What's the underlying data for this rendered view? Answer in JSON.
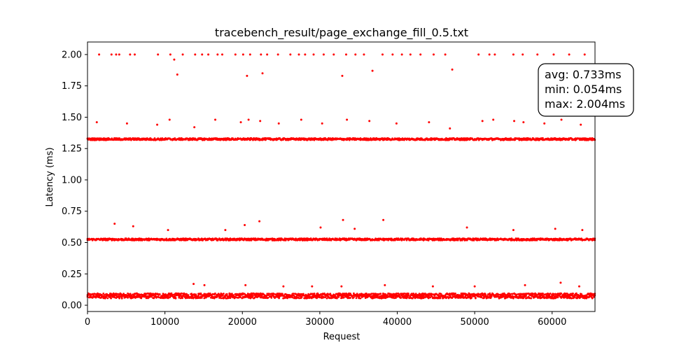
{
  "chart_data": {
    "type": "scatter",
    "title": "tracebench_result/page_exchange_fill_0.5.txt",
    "xlabel": "Request",
    "ylabel": "Latency (ms)",
    "xlim": [
      0,
      65536
    ],
    "ylim": [
      -0.05,
      2.1
    ],
    "x_ticks": [
      0,
      10000,
      20000,
      30000,
      40000,
      50000,
      60000
    ],
    "y_ticks": [
      0.0,
      0.25,
      0.5,
      0.75,
      1.0,
      1.25,
      1.5,
      1.75,
      2.0
    ],
    "x_tick_labels": [
      "0",
      "10000",
      "20000",
      "30000",
      "40000",
      "50000",
      "60000"
    ],
    "y_tick_labels": [
      "0.00",
      "0.25",
      "0.50",
      "0.75",
      "1.00",
      "1.25",
      "1.50",
      "1.75",
      "2.00"
    ],
    "grid": false,
    "marker_color": "#ff0000",
    "bands": [
      {
        "center": 0.075,
        "spread": 0.02
      },
      {
        "center": 0.525,
        "spread": 0.008
      },
      {
        "center": 1.325,
        "spread": 0.008
      }
    ],
    "outliers": [
      [
        1500,
        2.0
      ],
      [
        3100,
        2.0
      ],
      [
        3700,
        2.0
      ],
      [
        4100,
        2.0
      ],
      [
        5500,
        2.0
      ],
      [
        6100,
        2.0
      ],
      [
        9100,
        2.0
      ],
      [
        10700,
        2.0
      ],
      [
        11200,
        1.96
      ],
      [
        11600,
        1.84
      ],
      [
        12300,
        2.0
      ],
      [
        13900,
        2.0
      ],
      [
        14800,
        2.0
      ],
      [
        15600,
        2.0
      ],
      [
        16800,
        2.0
      ],
      [
        17400,
        2.0
      ],
      [
        19100,
        2.0
      ],
      [
        20100,
        2.0
      ],
      [
        20600,
        1.83
      ],
      [
        21000,
        2.0
      ],
      [
        22400,
        2.0
      ],
      [
        22600,
        1.85
      ],
      [
        23200,
        2.0
      ],
      [
        24600,
        2.0
      ],
      [
        26200,
        2.0
      ],
      [
        27300,
        2.0
      ],
      [
        28100,
        2.0
      ],
      [
        29200,
        2.0
      ],
      [
        30500,
        2.0
      ],
      [
        31800,
        2.0
      ],
      [
        32900,
        1.83
      ],
      [
        33400,
        2.0
      ],
      [
        34600,
        2.0
      ],
      [
        35700,
        2.0
      ],
      [
        36800,
        1.87
      ],
      [
        38100,
        2.0
      ],
      [
        39400,
        2.0
      ],
      [
        40600,
        2.0
      ],
      [
        41700,
        2.0
      ],
      [
        43000,
        2.0
      ],
      [
        44700,
        2.0
      ],
      [
        46200,
        2.0
      ],
      [
        47100,
        1.88
      ],
      [
        50500,
        2.0
      ],
      [
        51900,
        2.0
      ],
      [
        52600,
        2.0
      ],
      [
        55000,
        2.0
      ],
      [
        56200,
        2.0
      ],
      [
        58100,
        2.0
      ],
      [
        59300,
        1.87
      ],
      [
        60200,
        2.0
      ],
      [
        62200,
        2.0
      ],
      [
        64200,
        2.0
      ],
      [
        1200,
        1.46
      ],
      [
        5100,
        1.45
      ],
      [
        9000,
        1.44
      ],
      [
        10600,
        1.48
      ],
      [
        13800,
        1.42
      ],
      [
        16500,
        1.48
      ],
      [
        19800,
        1.46
      ],
      [
        20800,
        1.48
      ],
      [
        22300,
        1.47
      ],
      [
        24700,
        1.45
      ],
      [
        27600,
        1.48
      ],
      [
        30300,
        1.45
      ],
      [
        33500,
        1.48
      ],
      [
        36400,
        1.47
      ],
      [
        39900,
        1.45
      ],
      [
        44100,
        1.46
      ],
      [
        46800,
        1.41
      ],
      [
        51000,
        1.47
      ],
      [
        52400,
        1.48
      ],
      [
        55100,
        1.47
      ],
      [
        56300,
        1.46
      ],
      [
        59000,
        1.45
      ],
      [
        61200,
        1.48
      ],
      [
        63700,
        1.44
      ],
      [
        3500,
        0.65
      ],
      [
        5900,
        0.63
      ],
      [
        10400,
        0.6
      ],
      [
        17800,
        0.6
      ],
      [
        20300,
        0.64
      ],
      [
        22200,
        0.67
      ],
      [
        30100,
        0.62
      ],
      [
        33000,
        0.68
      ],
      [
        34500,
        0.61
      ],
      [
        38200,
        0.68
      ],
      [
        49000,
        0.62
      ],
      [
        55000,
        0.6
      ],
      [
        60400,
        0.61
      ],
      [
        63900,
        0.6
      ],
      [
        13700,
        0.17
      ],
      [
        15100,
        0.16
      ],
      [
        20400,
        0.16
      ],
      [
        25300,
        0.15
      ],
      [
        29000,
        0.15
      ],
      [
        32800,
        0.15
      ],
      [
        38400,
        0.16
      ],
      [
        44600,
        0.15
      ],
      [
        50000,
        0.15
      ],
      [
        56500,
        0.16
      ],
      [
        61100,
        0.18
      ],
      [
        63500,
        0.15
      ]
    ],
    "stats": {
      "avg": "avg: 0.733ms",
      "min": "min: 0.054ms",
      "max": "max: 2.004ms"
    }
  }
}
